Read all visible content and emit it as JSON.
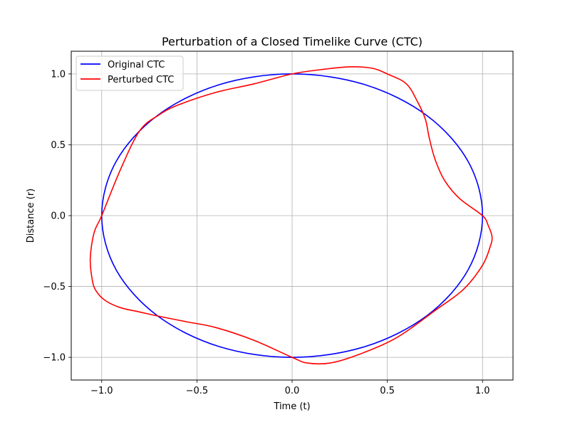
{
  "chart_data": {
    "type": "line",
    "title": "Perturbation of a Closed Timelike Curve (CTC)",
    "xlabel": "Time (t)",
    "ylabel": "Distance (r)",
    "xlim": [
      -1.16,
      1.16
    ],
    "ylim": [
      -1.16,
      1.16
    ],
    "xticks": [
      -1.0,
      -0.5,
      0.0,
      0.5,
      1.0
    ],
    "xtick_labels": [
      "−1.0",
      "−0.5",
      "0.0",
      "0.5",
      "1.0"
    ],
    "yticks": [
      -1.0,
      -0.5,
      0.0,
      0.5,
      1.0
    ],
    "ytick_labels": [
      "−1.0",
      "−0.5",
      "0.0",
      "0.5",
      "1.0"
    ],
    "grid": true,
    "legend_position": "upper-left",
    "series": [
      {
        "name": "Original CTC",
        "color": "#0000ff",
        "x": [
          1.0,
          0.924,
          0.707,
          0.383,
          0.0,
          -0.383,
          -0.707,
          -0.924,
          -1.0,
          -0.924,
          -0.707,
          -0.383,
          0.0,
          0.383,
          0.707,
          0.924,
          1.0
        ],
        "y": [
          0.0,
          0.383,
          0.707,
          0.924,
          1.0,
          0.924,
          0.707,
          0.383,
          0.0,
          -0.383,
          -0.707,
          -0.924,
          -1.0,
          -0.924,
          -0.707,
          -0.383,
          0.0
        ]
      },
      {
        "name": "Perturbed CTC",
        "color": "#ff0000",
        "x": [
          1.0,
          0.88,
          0.8,
          0.75,
          0.72,
          0.7,
          0.66,
          0.6,
          0.5,
          0.42,
          0.3,
          0.15,
          0.0,
          -0.2,
          -0.4,
          -0.6,
          -0.7,
          -0.8,
          -0.9,
          -1.0,
          -1.04,
          -1.06,
          -1.05,
          -1.03,
          -0.98,
          -0.9,
          -0.8,
          -0.7,
          -0.55,
          -0.4,
          -0.2,
          0.0,
          0.08,
          0.2,
          0.35,
          0.55,
          0.75,
          0.9,
          1.0,
          1.04,
          1.05,
          1.03,
          1.0
        ],
        "y": [
          0.0,
          0.12,
          0.25,
          0.4,
          0.55,
          0.68,
          0.8,
          0.93,
          1.0,
          1.04,
          1.05,
          1.03,
          1.0,
          0.93,
          0.87,
          0.78,
          0.71,
          0.6,
          0.33,
          0.0,
          -0.12,
          -0.3,
          -0.45,
          -0.53,
          -0.6,
          -0.65,
          -0.68,
          -0.71,
          -0.75,
          -0.79,
          -0.88,
          -1.0,
          -1.04,
          -1.04,
          -0.98,
          -0.86,
          -0.67,
          -0.52,
          -0.35,
          -0.22,
          -0.15,
          -0.07,
          0.0
        ]
      }
    ]
  }
}
